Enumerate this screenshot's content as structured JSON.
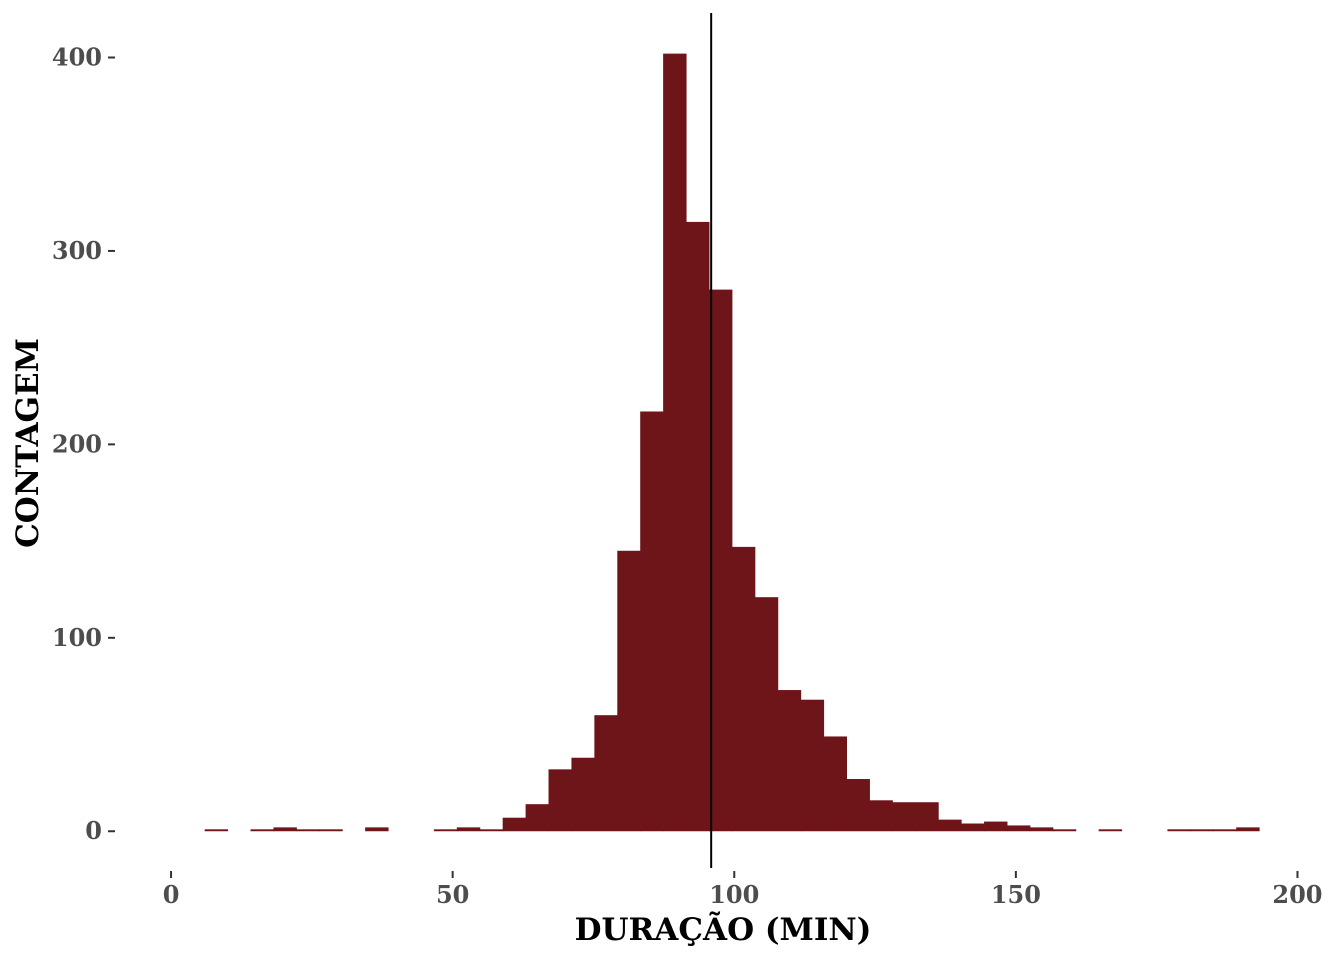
{
  "chart_data": {
    "type": "bar",
    "title": "",
    "xlabel": "DURAÇÃO (MIN)",
    "ylabel": "CONTAGEM",
    "xlim": [
      -8,
      204
    ],
    "ylim": [
      -19,
      423
    ],
    "grid": false,
    "x_ticks": [
      {
        "value": 0,
        "label": "0"
      },
      {
        "value": 50,
        "label": "50"
      },
      {
        "value": 100,
        "label": "100"
      },
      {
        "value": 150,
        "label": "150"
      },
      {
        "value": 200,
        "label": "200"
      }
    ],
    "y_ticks": [
      {
        "value": 0,
        "label": "0"
      },
      {
        "value": 100,
        "label": "100"
      },
      {
        "value": 200,
        "label": "200"
      },
      {
        "value": 300,
        "label": "300"
      },
      {
        "value": 400,
        "label": "400"
      }
    ],
    "bin_start": 1.9,
    "bin_width": 4.07,
    "counts": [
      0,
      1,
      0,
      1,
      2,
      1,
      1,
      0,
      2,
      0,
      0,
      1,
      2,
      1,
      7,
      14,
      32,
      38,
      60,
      145,
      217,
      402,
      315,
      280,
      147,
      121,
      73,
      68,
      49,
      27,
      16,
      15,
      15,
      6,
      4,
      5,
      3,
      2,
      1,
      0,
      1,
      0,
      0,
      1,
      1,
      1,
      2
    ],
    "mean_line": {
      "x": 95.9
    },
    "colors": {
      "bar": "#6e151a",
      "mean_line": "#000000"
    }
  }
}
